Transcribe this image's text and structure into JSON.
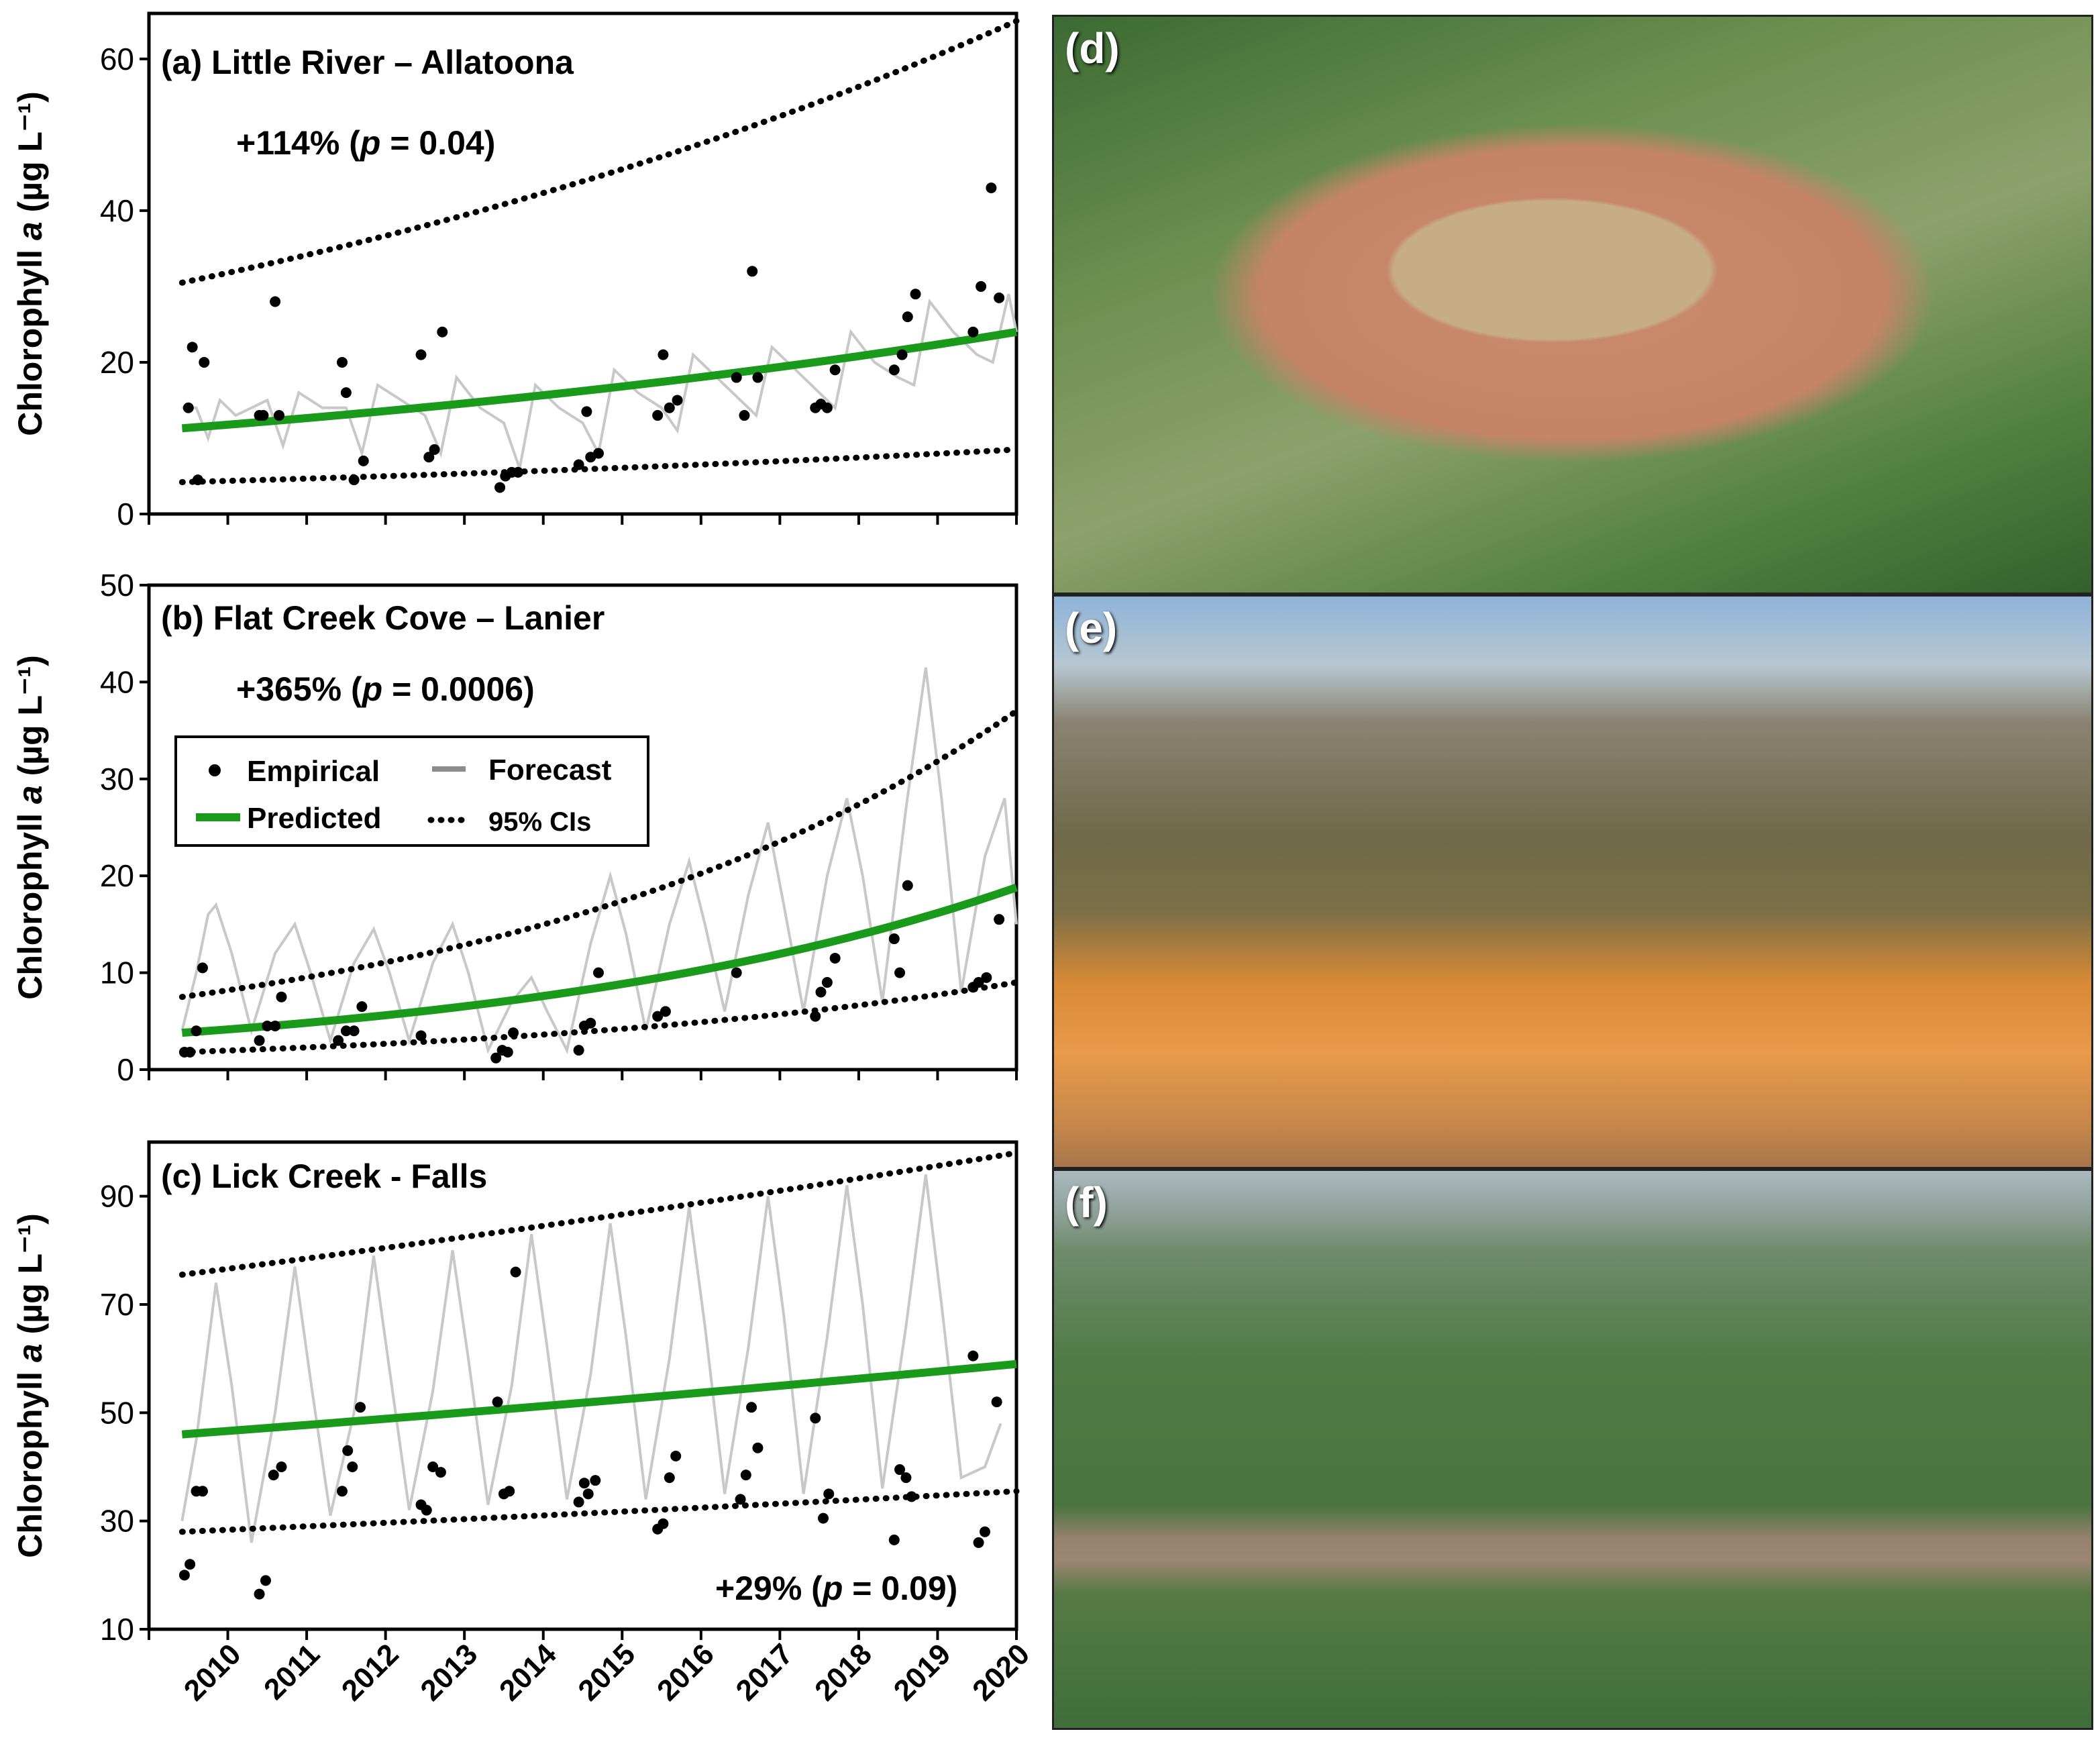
{
  "panels": [
    {
      "id": "a",
      "title": "(a) Little River – Allatoona",
      "annotation": "+114%",
      "p_value": "= 0.04)",
      "ylabel": "Chlorophyll",
      "ylabel_italic": "a",
      "ylabel_unit": "(µg L⁻¹)",
      "ylim": [
        0,
        66
      ],
      "yticks": [
        0,
        20,
        40,
        60
      ]
    },
    {
      "id": "b",
      "title": "(b) Flat Creek Cove – Lanier",
      "annotation": "+365%",
      "p_value": "= 0.0006)",
      "ylabel": "Chlorophyll",
      "ylabel_italic": "a",
      "ylabel_unit": "(µg L⁻¹)",
      "ylim": [
        0,
        50
      ],
      "yticks": [
        0,
        10,
        20,
        30,
        40,
        50
      ]
    },
    {
      "id": "c",
      "title": "(c) Lick Creek - Falls",
      "annotation": "+29%",
      "p_value": "= 0.09)",
      "ylabel": "Chlorophyll",
      "ylabel_italic": "a",
      "ylabel_unit": "(µg L⁻¹)",
      "ylim": [
        10,
        100
      ],
      "yticks": [
        10,
        30,
        50,
        70,
        90
      ]
    }
  ],
  "legend": {
    "empirical": "Empirical",
    "forecast": "Forecast",
    "predicted": "Predicted",
    "ci": "95% CIs"
  },
  "xticks": [
    "2010",
    "2011",
    "2012",
    "2013",
    "2014",
    "2015",
    "2016",
    "2017",
    "2018",
    "2019",
    "2020"
  ],
  "photos": [
    {
      "label": "(d)"
    },
    {
      "label": "(e)"
    },
    {
      "label": "(f)"
    }
  ],
  "colors": {
    "predicted": "#1a9a1a",
    "forecast": "#c8c8c8",
    "empirical": "#000000",
    "ci": "#000000"
  },
  "chart_data": [
    {
      "type": "line",
      "panel": "a",
      "xlim": [
        2009.0,
        2020.0
      ],
      "ylim": [
        0,
        66
      ],
      "predicted": {
        "start": [
          2009.42,
          11.3
        ],
        "end": [
          2020.0,
          24.0
        ]
      },
      "ci_upper": {
        "start": [
          2009.42,
          30.5
        ],
        "end": [
          2020.0,
          65.0
        ]
      },
      "ci_lower": {
        "start": [
          2009.42,
          4.2
        ],
        "end": [
          2020.0,
          8.5
        ]
      },
      "forecast_series": [
        [
          2009.42,
          14
        ],
        [
          2009.6,
          14
        ],
        [
          2009.75,
          10
        ],
        [
          2009.9,
          15
        ],
        [
          2010.1,
          13
        ],
        [
          2010.3,
          14
        ],
        [
          2010.5,
          15
        ],
        [
          2010.7,
          9
        ],
        [
          2010.9,
          16
        ],
        [
          2011.2,
          14
        ],
        [
          2011.5,
          14
        ],
        [
          2011.7,
          8
        ],
        [
          2011.9,
          17
        ],
        [
          2012.2,
          15
        ],
        [
          2012.5,
          13
        ],
        [
          2012.7,
          8
        ],
        [
          2012.9,
          18
        ],
        [
          2013.2,
          14
        ],
        [
          2013.5,
          12
        ],
        [
          2013.7,
          6
        ],
        [
          2013.9,
          17
        ],
        [
          2014.2,
          14
        ],
        [
          2014.5,
          12
        ],
        [
          2014.7,
          8
        ],
        [
          2014.9,
          19
        ],
        [
          2015.2,
          16
        ],
        [
          2015.5,
          14
        ],
        [
          2015.7,
          11
        ],
        [
          2015.9,
          21
        ],
        [
          2016.2,
          18
        ],
        [
          2016.5,
          15
        ],
        [
          2016.7,
          13
        ],
        [
          2016.9,
          22
        ],
        [
          2017.2,
          19
        ],
        [
          2017.5,
          16
        ],
        [
          2017.7,
          14
        ],
        [
          2017.9,
          24
        ],
        [
          2018.2,
          20
        ],
        [
          2018.5,
          18
        ],
        [
          2018.7,
          17
        ],
        [
          2018.9,
          28
        ],
        [
          2019.2,
          24
        ],
        [
          2019.5,
          21
        ],
        [
          2019.7,
          20
        ],
        [
          2019.9,
          29
        ],
        [
          2020.0,
          24
        ]
      ],
      "empirical": [
        [
          2009.5,
          14
        ],
        [
          2009.55,
          22
        ],
        [
          2009.62,
          4.5
        ],
        [
          2009.7,
          20
        ],
        [
          2010.4,
          13
        ],
        [
          2010.45,
          13
        ],
        [
          2010.6,
          28
        ],
        [
          2010.65,
          13
        ],
        [
          2011.45,
          20
        ],
        [
          2011.5,
          16
        ],
        [
          2011.6,
          4.5
        ],
        [
          2011.72,
          7
        ],
        [
          2012.45,
          21
        ],
        [
          2012.55,
          7.5
        ],
        [
          2012.62,
          8.5
        ],
        [
          2012.72,
          24
        ],
        [
          2013.45,
          3.5
        ],
        [
          2013.52,
          5
        ],
        [
          2013.6,
          5.5
        ],
        [
          2013.68,
          5.5
        ],
        [
          2014.45,
          6.5
        ],
        [
          2014.55,
          13.5
        ],
        [
          2014.6,
          7.5
        ],
        [
          2014.7,
          8
        ],
        [
          2015.45,
          13
        ],
        [
          2015.52,
          21
        ],
        [
          2015.6,
          14
        ],
        [
          2015.7,
          15
        ],
        [
          2016.45,
          18
        ],
        [
          2016.55,
          13
        ],
        [
          2016.65,
          32
        ],
        [
          2016.72,
          18
        ],
        [
          2017.45,
          14
        ],
        [
          2017.52,
          14.5
        ],
        [
          2017.6,
          14
        ],
        [
          2017.7,
          19
        ],
        [
          2018.45,
          19
        ],
        [
          2018.55,
          21
        ],
        [
          2018.62,
          26
        ],
        [
          2018.72,
          29
        ],
        [
          2019.45,
          24
        ],
        [
          2019.55,
          30
        ],
        [
          2019.68,
          43
        ],
        [
          2019.78,
          28.5
        ]
      ]
    },
    {
      "type": "line",
      "panel": "b",
      "xlim": [
        2009.0,
        2020.0
      ],
      "ylim": [
        0,
        50
      ],
      "predicted": {
        "start": [
          2009.42,
          3.8
        ],
        "end": [
          2020.0,
          18.8
        ]
      },
      "ci_upper": {
        "start": [
          2009.42,
          7.5
        ],
        "end": [
          2020.0,
          37.0
        ]
      },
      "ci_lower": {
        "start": [
          2009.42,
          1.8
        ],
        "end": [
          2020.0,
          9.0
        ]
      },
      "forecast_series": [
        [
          2009.42,
          4
        ],
        [
          2009.6,
          10
        ],
        [
          2009.75,
          16
        ],
        [
          2009.85,
          17
        ],
        [
          2010.05,
          12
        ],
        [
          2010.3,
          4
        ],
        [
          2010.6,
          12
        ],
        [
          2010.85,
          15
        ],
        [
          2011.05,
          10
        ],
        [
          2011.3,
          3
        ],
        [
          2011.6,
          11
        ],
        [
          2011.85,
          14.5
        ],
        [
          2012.05,
          10
        ],
        [
          2012.3,
          3
        ],
        [
          2012.6,
          11
        ],
        [
          2012.85,
          15
        ],
        [
          2013.05,
          10
        ],
        [
          2013.3,
          2
        ],
        [
          2013.6,
          7
        ],
        [
          2013.85,
          9.5
        ],
        [
          2014.05,
          6
        ],
        [
          2014.3,
          2
        ],
        [
          2014.6,
          13
        ],
        [
          2014.85,
          20
        ],
        [
          2015.05,
          14
        ],
        [
          2015.3,
          4
        ],
        [
          2015.6,
          15
        ],
        [
          2015.85,
          21.5
        ],
        [
          2016.05,
          15
        ],
        [
          2016.3,
          6
        ],
        [
          2016.6,
          18
        ],
        [
          2016.85,
          25.5
        ],
        [
          2017.05,
          17
        ],
        [
          2017.3,
          6
        ],
        [
          2017.6,
          20
        ],
        [
          2017.85,
          28
        ],
        [
          2018.05,
          20
        ],
        [
          2018.3,
          7
        ],
        [
          2018.6,
          27
        ],
        [
          2018.85,
          41.5
        ],
        [
          2019.05,
          28
        ],
        [
          2019.3,
          8
        ],
        [
          2019.6,
          22
        ],
        [
          2019.85,
          28
        ],
        [
          2020.0,
          15
        ]
      ],
      "empirical": [
        [
          2009.45,
          1.8
        ],
        [
          2009.52,
          1.8
        ],
        [
          2009.6,
          4
        ],
        [
          2009.68,
          10.5
        ],
        [
          2010.4,
          3
        ],
        [
          2010.5,
          4.5
        ],
        [
          2010.6,
          4.5
        ],
        [
          2010.68,
          7.5
        ],
        [
          2011.4,
          3
        ],
        [
          2011.5,
          4
        ],
        [
          2011.6,
          4
        ],
        [
          2011.7,
          6.5
        ],
        [
          2012.45,
          3.5
        ],
        [
          2013.4,
          1.2
        ],
        [
          2013.48,
          2
        ],
        [
          2013.55,
          1.8
        ],
        [
          2013.62,
          3.8
        ],
        [
          2014.45,
          2
        ],
        [
          2014.52,
          4.5
        ],
        [
          2014.6,
          4.8
        ],
        [
          2014.7,
          10
        ],
        [
          2015.45,
          5.5
        ],
        [
          2015.55,
          6
        ],
        [
          2016.45,
          10
        ],
        [
          2017.45,
          5.5
        ],
        [
          2017.52,
          8
        ],
        [
          2017.6,
          9
        ],
        [
          2017.7,
          11.5
        ],
        [
          2018.45,
          13.5
        ],
        [
          2018.52,
          10
        ],
        [
          2018.62,
          19
        ],
        [
          2019.45,
          8.5
        ],
        [
          2019.52,
          9
        ],
        [
          2019.62,
          9.5
        ],
        [
          2019.78,
          15.5
        ]
      ]
    },
    {
      "type": "line",
      "panel": "c",
      "xlim": [
        2009.0,
        2020.0
      ],
      "ylim": [
        10,
        100
      ],
      "predicted": {
        "start": [
          2009.42,
          46.0
        ],
        "end": [
          2020.0,
          59.0
        ]
      },
      "ci_upper": {
        "start": [
          2009.42,
          75.5
        ],
        "end": [
          2020.0,
          98.0
        ]
      },
      "ci_lower": {
        "start": [
          2009.42,
          28.0
        ],
        "end": [
          2020.0,
          35.5
        ]
      },
      "forecast_series": [
        [
          2009.42,
          30
        ],
        [
          2009.6,
          45
        ],
        [
          2009.85,
          74
        ],
        [
          2010.05,
          55
        ],
        [
          2010.3,
          26
        ],
        [
          2010.6,
          50
        ],
        [
          2010.85,
          77
        ],
        [
          2011.05,
          56
        ],
        [
          2011.3,
          31
        ],
        [
          2011.6,
          50
        ],
        [
          2011.85,
          79
        ],
        [
          2012.05,
          58
        ],
        [
          2012.3,
          32
        ],
        [
          2012.6,
          54
        ],
        [
          2012.85,
          80
        ],
        [
          2013.05,
          60
        ],
        [
          2013.3,
          33
        ],
        [
          2013.6,
          55
        ],
        [
          2013.85,
          83
        ],
        [
          2014.05,
          62
        ],
        [
          2014.3,
          34
        ],
        [
          2014.6,
          57
        ],
        [
          2014.85,
          85
        ],
        [
          2015.05,
          64
        ],
        [
          2015.3,
          34
        ],
        [
          2015.6,
          60
        ],
        [
          2015.85,
          88
        ],
        [
          2016.05,
          66
        ],
        [
          2016.3,
          35
        ],
        [
          2016.6,
          62
        ],
        [
          2016.85,
          90
        ],
        [
          2017.05,
          68
        ],
        [
          2017.3,
          35
        ],
        [
          2017.6,
          64
        ],
        [
          2017.85,
          92
        ],
        [
          2018.05,
          70
        ],
        [
          2018.3,
          36
        ],
        [
          2018.6,
          66
        ],
        [
          2018.85,
          94
        ],
        [
          2019.05,
          70
        ],
        [
          2019.3,
          38
        ],
        [
          2019.6,
          40
        ],
        [
          2019.8,
          48
        ]
      ],
      "empirical": [
        [
          2009.45,
          20
        ],
        [
          2009.52,
          22
        ],
        [
          2009.6,
          35.5
        ],
        [
          2009.68,
          35.5
        ],
        [
          2010.4,
          16.5
        ],
        [
          2010.48,
          19
        ],
        [
          2010.58,
          38.5
        ],
        [
          2010.68,
          40
        ],
        [
          2011.45,
          35.5
        ],
        [
          2011.52,
          43
        ],
        [
          2011.58,
          40
        ],
        [
          2011.68,
          51
        ],
        [
          2012.45,
          33
        ],
        [
          2012.52,
          32
        ],
        [
          2012.6,
          40
        ],
        [
          2012.7,
          39
        ],
        [
          2013.42,
          52
        ],
        [
          2013.5,
          35
        ],
        [
          2013.57,
          35.5
        ],
        [
          2013.65,
          76
        ],
        [
          2014.45,
          33.5
        ],
        [
          2014.52,
          37
        ],
        [
          2014.57,
          35
        ],
        [
          2014.66,
          37.5
        ],
        [
          2015.45,
          28.5
        ],
        [
          2015.52,
          29.5
        ],
        [
          2015.6,
          38
        ],
        [
          2015.68,
          42
        ],
        [
          2016.5,
          34
        ],
        [
          2016.57,
          38.5
        ],
        [
          2016.64,
          51
        ],
        [
          2016.72,
          43.5
        ],
        [
          2017.45,
          49
        ],
        [
          2017.55,
          30.5
        ],
        [
          2017.62,
          35
        ],
        [
          2018.45,
          26.5
        ],
        [
          2018.52,
          39.5
        ],
        [
          2018.6,
          38
        ],
        [
          2018.67,
          34.5
        ],
        [
          2019.45,
          60.5
        ],
        [
          2019.52,
          26
        ],
        [
          2019.6,
          28
        ],
        [
          2019.75,
          52
        ]
      ]
    }
  ]
}
